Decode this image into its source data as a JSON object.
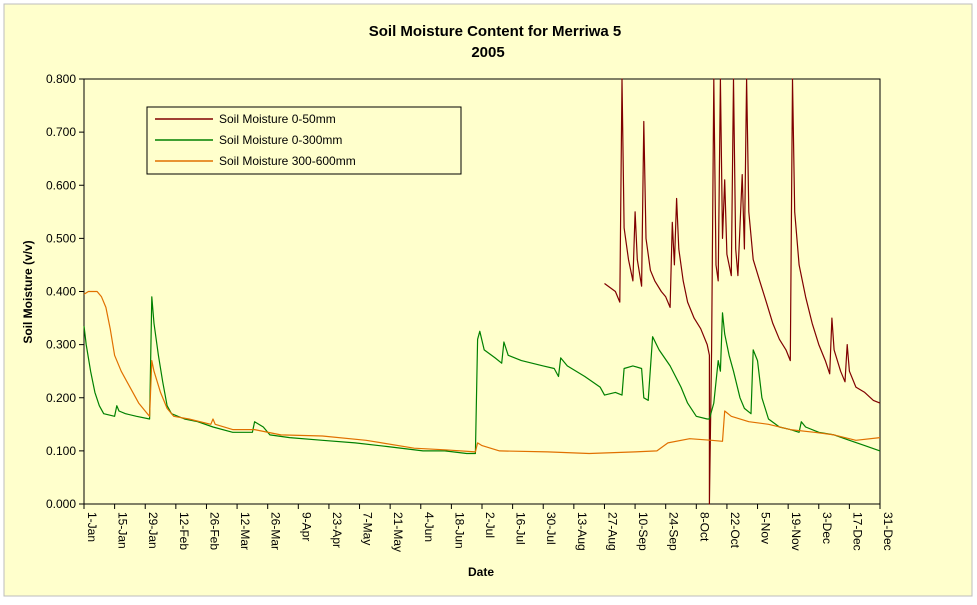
{
  "colors": {
    "background": "#ffffcc",
    "plot_background": "#ffffcc",
    "border": "#000000",
    "series_colors": [
      "#800000",
      "#008000",
      "#e07000"
    ]
  },
  "chart_data": {
    "type": "line",
    "title": "Soil Moisture Content for Merriwa 5",
    "subtitle": "2005",
    "xlabel": "Date",
    "ylabel": "Soil Moisture (v/v)",
    "ylim": [
      0,
      0.8
    ],
    "xlim_day": [
      1,
      365
    ],
    "grid": false,
    "legend_placement": "top-left",
    "y_ticks": [
      "0.000",
      "0.100",
      "0.200",
      "0.300",
      "0.400",
      "0.500",
      "0.600",
      "0.700",
      "0.800"
    ],
    "x_ticks": [
      "1-Jan",
      "15-Jan",
      "29-Jan",
      "12-Feb",
      "26-Feb",
      "12-Mar",
      "26-Mar",
      "9-Apr",
      "23-Apr",
      "7-May",
      "21-May",
      "4-Jun",
      "18-Jun",
      "2-Jul",
      "16-Jul",
      "30-Jul",
      "13-Aug",
      "27-Aug",
      "10-Sep",
      "24-Sep",
      "8-Oct",
      "22-Oct",
      "5-Nov",
      "19-Nov",
      "3-Dec",
      "17-Dec",
      "31-Dec"
    ],
    "series": [
      {
        "name": "Soil Moisture 0-50mm",
        "color": "#800000",
        "points": [
          [
            "27-Aug",
            0.415
          ],
          [
            "1-Sep",
            0.4
          ],
          [
            "3-Sep",
            0.38
          ],
          [
            "4-Sep",
            0.8
          ],
          [
            "5-Sep",
            0.52
          ],
          [
            "7-Sep",
            0.46
          ],
          [
            "9-Sep",
            0.42
          ],
          [
            "10-Sep",
            0.55
          ],
          [
            "11-Sep",
            0.46
          ],
          [
            "13-Sep",
            0.41
          ],
          [
            "14-Sep",
            0.72
          ],
          [
            "15-Sep",
            0.5
          ],
          [
            "17-Sep",
            0.44
          ],
          [
            "19-Sep",
            0.42
          ],
          [
            "22-Sep",
            0.4
          ],
          [
            "24-Sep",
            0.39
          ],
          [
            "26-Sep",
            0.37
          ],
          [
            "27-Sep",
            0.53
          ],
          [
            "28-Sep",
            0.45
          ],
          [
            "29-Sep",
            0.575
          ],
          [
            "30-Sep",
            0.48
          ],
          [
            "2-Oct",
            0.42
          ],
          [
            "4-Oct",
            0.38
          ],
          [
            "7-Oct",
            0.35
          ],
          [
            "10-Oct",
            0.33
          ],
          [
            "13-Oct",
            0.3
          ],
          [
            "14-Oct",
            0.28
          ],
          [
            "14-Oct",
            0.0
          ],
          [
            "15-Oct",
            0.29
          ],
          [
            "16-Oct",
            0.8
          ],
          [
            "17-Oct",
            0.45
          ],
          [
            "18-Oct",
            0.42
          ],
          [
            "19-Oct",
            0.8
          ],
          [
            "20-Oct",
            0.5
          ],
          [
            "21-Oct",
            0.61
          ],
          [
            "22-Oct",
            0.47
          ],
          [
            "24-Oct",
            0.43
          ],
          [
            "25-Oct",
            0.8
          ],
          [
            "26-Oct",
            0.48
          ],
          [
            "27-Oct",
            0.43
          ],
          [
            "29-Oct",
            0.62
          ],
          [
            "30-Oct",
            0.48
          ],
          [
            "31-Oct",
            0.8
          ],
          [
            "1-Nov",
            0.55
          ],
          [
            "3-Nov",
            0.46
          ],
          [
            "6-Nov",
            0.42
          ],
          [
            "9-Nov",
            0.38
          ],
          [
            "12-Nov",
            0.34
          ],
          [
            "15-Nov",
            0.31
          ],
          [
            "18-Nov",
            0.29
          ],
          [
            "20-Nov",
            0.27
          ],
          [
            "21-Nov",
            0.8
          ],
          [
            "22-Nov",
            0.55
          ],
          [
            "24-Nov",
            0.45
          ],
          [
            "27-Nov",
            0.39
          ],
          [
            "30-Nov",
            0.34
          ],
          [
            "3-Dec",
            0.3
          ],
          [
            "6-Dec",
            0.27
          ],
          [
            "8-Dec",
            0.245
          ],
          [
            "9-Dec",
            0.35
          ],
          [
            "10-Dec",
            0.29
          ],
          [
            "13-Dec",
            0.25
          ],
          [
            "15-Dec",
            0.23
          ],
          [
            "16-Dec",
            0.3
          ],
          [
            "17-Dec",
            0.25
          ],
          [
            "20-Dec",
            0.22
          ],
          [
            "24-Dec",
            0.21
          ],
          [
            "28-Dec",
            0.195
          ],
          [
            "31-Dec",
            0.19
          ]
        ]
      },
      {
        "name": "Soil Moisture 0-300mm",
        "color": "#008000",
        "points": [
          [
            "1-Jan",
            0.335
          ],
          [
            "2-Jan",
            0.3
          ],
          [
            "4-Jan",
            0.25
          ],
          [
            "6-Jan",
            0.21
          ],
          [
            "8-Jan",
            0.185
          ],
          [
            "10-Jan",
            0.17
          ],
          [
            "15-Jan",
            0.165
          ],
          [
            "16-Jan",
            0.185
          ],
          [
            "17-Jan",
            0.175
          ],
          [
            "20-Jan",
            0.17
          ],
          [
            "25-Jan",
            0.165
          ],
          [
            "31-Jan",
            0.16
          ],
          [
            "1-Feb",
            0.39
          ],
          [
            "2-Feb",
            0.34
          ],
          [
            "4-Feb",
            0.28
          ],
          [
            "6-Feb",
            0.23
          ],
          [
            "8-Feb",
            0.185
          ],
          [
            "10-Feb",
            0.17
          ],
          [
            "16-Feb",
            0.16
          ],
          [
            "22-Feb",
            0.155
          ],
          [
            "1-Mar",
            0.145
          ],
          [
            "10-Mar",
            0.135
          ],
          [
            "19-Mar",
            0.135
          ],
          [
            "20-Mar",
            0.155
          ],
          [
            "24-Mar",
            0.145
          ],
          [
            "27-Mar",
            0.13
          ],
          [
            "5-Apr",
            0.125
          ],
          [
            "20-Apr",
            0.12
          ],
          [
            "5-May",
            0.115
          ],
          [
            "20-May",
            0.108
          ],
          [
            "5-Jun",
            0.1
          ],
          [
            "15-Jun",
            0.1
          ],
          [
            "25-Jun",
            0.095
          ],
          [
            "29-Jun",
            0.095
          ],
          [
            "30-Jun",
            0.31
          ],
          [
            "1-Jul",
            0.325
          ],
          [
            "3-Jul",
            0.29
          ],
          [
            "8-Jul",
            0.275
          ],
          [
            "11-Jul",
            0.265
          ],
          [
            "12-Jul",
            0.305
          ],
          [
            "14-Jul",
            0.28
          ],
          [
            "20-Jul",
            0.27
          ],
          [
            "30-Jul",
            0.26
          ],
          [
            "4-Aug",
            0.255
          ],
          [
            "6-Aug",
            0.24
          ],
          [
            "7-Aug",
            0.275
          ],
          [
            "10-Aug",
            0.26
          ],
          [
            "18-Aug",
            0.24
          ],
          [
            "25-Aug",
            0.22
          ],
          [
            "27-Aug",
            0.205
          ],
          [
            "1-Sep",
            0.21
          ],
          [
            "4-Sep",
            0.205
          ],
          [
            "5-Sep",
            0.255
          ],
          [
            "9-Sep",
            0.26
          ],
          [
            "13-Sep",
            0.255
          ],
          [
            "14-Sep",
            0.2
          ],
          [
            "16-Sep",
            0.195
          ],
          [
            "18-Sep",
            0.315
          ],
          [
            "21-Sep",
            0.29
          ],
          [
            "26-Sep",
            0.26
          ],
          [
            "1-Oct",
            0.22
          ],
          [
            "4-Oct",
            0.19
          ],
          [
            "8-Oct",
            0.165
          ],
          [
            "13-Oct",
            0.16
          ],
          [
            "14-Oct",
            0.16
          ],
          [
            "16-Oct",
            0.19
          ],
          [
            "18-Oct",
            0.27
          ],
          [
            "19-Oct",
            0.25
          ],
          [
            "20-Oct",
            0.36
          ],
          [
            "21-Oct",
            0.32
          ],
          [
            "23-Oct",
            0.28
          ],
          [
            "25-Oct",
            0.25
          ],
          [
            "28-Oct",
            0.2
          ],
          [
            "30-Oct",
            0.18
          ],
          [
            "2-Nov",
            0.17
          ],
          [
            "3-Nov",
            0.29
          ],
          [
            "5-Nov",
            0.27
          ],
          [
            "7-Nov",
            0.2
          ],
          [
            "10-Nov",
            0.16
          ],
          [
            "15-Nov",
            0.145
          ],
          [
            "20-Nov",
            0.14
          ],
          [
            "24-Nov",
            0.135
          ],
          [
            "25-Nov",
            0.155
          ],
          [
            "27-Nov",
            0.145
          ],
          [
            "3-Dec",
            0.135
          ],
          [
            "10-Dec",
            0.13
          ],
          [
            "17-Dec",
            0.12
          ],
          [
            "24-Dec",
            0.11
          ],
          [
            "31-Dec",
            0.1
          ]
        ]
      },
      {
        "name": "Soil Moisture 300-600mm",
        "color": "#e07000",
        "points": [
          [
            "1-Jan",
            0.395
          ],
          [
            "3-Jan",
            0.4
          ],
          [
            "7-Jan",
            0.4
          ],
          [
            "9-Jan",
            0.39
          ],
          [
            "11-Jan",
            0.37
          ],
          [
            "13-Jan",
            0.33
          ],
          [
            "15-Jan",
            0.28
          ],
          [
            "18-Jan",
            0.25
          ],
          [
            "22-Jan",
            0.22
          ],
          [
            "26-Jan",
            0.19
          ],
          [
            "30-Jan",
            0.17
          ],
          [
            "31-Jan",
            0.165
          ],
          [
            "1-Feb",
            0.27
          ],
          [
            "2-Feb",
            0.25
          ],
          [
            "5-Feb",
            0.21
          ],
          [
            "8-Feb",
            0.18
          ],
          [
            "11-Feb",
            0.165
          ],
          [
            "18-Feb",
            0.16
          ],
          [
            "28-Feb",
            0.15
          ],
          [
            "1-Mar",
            0.16
          ],
          [
            "2-Mar",
            0.15
          ],
          [
            "10-Mar",
            0.14
          ],
          [
            "20-Mar",
            0.14
          ],
          [
            "1-Apr",
            0.13
          ],
          [
            "20-Apr",
            0.128
          ],
          [
            "10-May",
            0.12
          ],
          [
            "1-Jun",
            0.105
          ],
          [
            "15-Jun",
            0.102
          ],
          [
            "29-Jun",
            0.098
          ],
          [
            "30-Jun",
            0.115
          ],
          [
            "2-Jul",
            0.11
          ],
          [
            "10-Jul",
            0.1
          ],
          [
            "1-Aug",
            0.098
          ],
          [
            "20-Aug",
            0.095
          ],
          [
            "10-Sep",
            0.098
          ],
          [
            "20-Sep",
            0.1
          ],
          [
            "25-Sep",
            0.115
          ],
          [
            "5-Oct",
            0.123
          ],
          [
            "15-Oct",
            0.12
          ],
          [
            "20-Oct",
            0.118
          ],
          [
            "21-Oct",
            0.175
          ],
          [
            "24-Oct",
            0.165
          ],
          [
            "1-Nov",
            0.155
          ],
          [
            "10-Nov",
            0.15
          ],
          [
            "20-Nov",
            0.14
          ],
          [
            "1-Dec",
            0.135
          ],
          [
            "10-Dec",
            0.13
          ],
          [
            "20-Dec",
            0.12
          ],
          [
            "31-Dec",
            0.125
          ]
        ]
      }
    ]
  }
}
